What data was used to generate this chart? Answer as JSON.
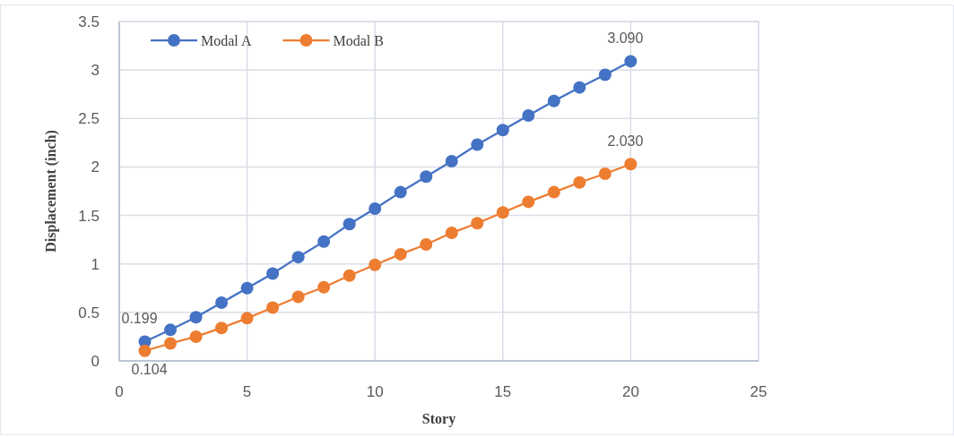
{
  "chart_data": {
    "type": "line",
    "xlabel": "Story",
    "ylabel": "Displacement (inch)",
    "x": [
      1,
      2,
      3,
      4,
      5,
      6,
      7,
      8,
      9,
      10,
      11,
      12,
      13,
      14,
      15,
      16,
      17,
      18,
      19,
      20
    ],
    "series": [
      {
        "name": "Modal A",
        "color": "#4472c4",
        "values": [
          0.199,
          0.32,
          0.45,
          0.6,
          0.75,
          0.9,
          1.07,
          1.23,
          1.41,
          1.57,
          1.74,
          1.9,
          2.06,
          2.23,
          2.38,
          2.53,
          2.68,
          2.82,
          2.95,
          3.09
        ],
        "value_labels": [
          "0.199",
          null,
          null,
          null,
          null,
          null,
          null,
          null,
          null,
          null,
          null,
          null,
          null,
          null,
          null,
          null,
          null,
          null,
          null,
          "3.090"
        ]
      },
      {
        "name": "Modal B",
        "color": "#ed7d31",
        "values": [
          0.104,
          0.18,
          0.25,
          0.34,
          0.44,
          0.55,
          0.66,
          0.76,
          0.88,
          0.99,
          1.1,
          1.2,
          1.32,
          1.42,
          1.53,
          1.64,
          1.74,
          1.84,
          1.93,
          2.03
        ],
        "value_labels": [
          "0.104",
          null,
          null,
          null,
          null,
          null,
          null,
          null,
          null,
          null,
          null,
          null,
          null,
          null,
          null,
          null,
          null,
          null,
          null,
          "2.030"
        ]
      }
    ],
    "xlim": [
      0,
      25
    ],
    "xticks": [
      0,
      5,
      10,
      15,
      20,
      25
    ],
    "ylim": [
      0,
      3.5
    ],
    "yticks": [
      0,
      0.5,
      1,
      1.5,
      2,
      2.5,
      3,
      3.5
    ],
    "grid": true,
    "legend": "top left",
    "marker": "circle",
    "line_style": "solid"
  }
}
